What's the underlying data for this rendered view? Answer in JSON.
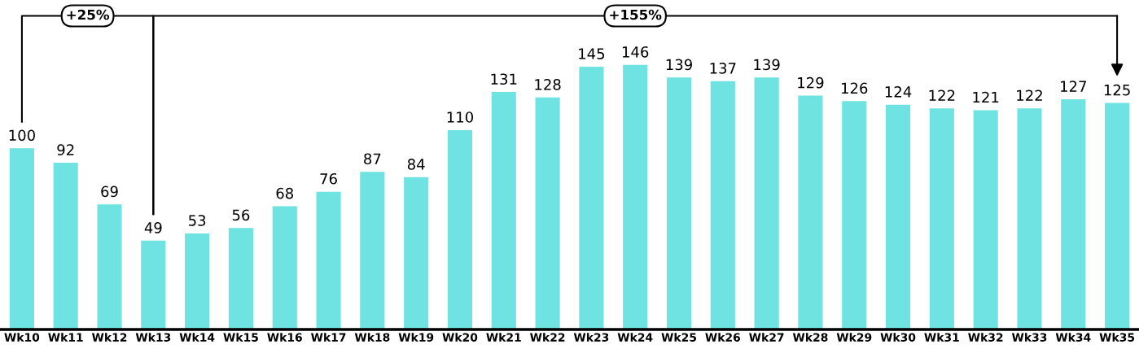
{
  "chart_data": {
    "type": "bar",
    "categories": [
      "Wk10",
      "Wk11",
      "Wk12",
      "Wk13",
      "Wk14",
      "Wk15",
      "Wk16",
      "Wk17",
      "Wk18",
      "Wk19",
      "Wk20",
      "Wk21",
      "Wk22",
      "Wk23",
      "Wk24",
      "Wk25",
      "Wk26",
      "Wk27",
      "Wk28",
      "Wk29",
      "Wk30",
      "Wk31",
      "Wk32",
      "Wk33",
      "Wk34",
      "Wk35"
    ],
    "values": [
      100,
      92,
      69,
      49,
      53,
      56,
      68,
      76,
      87,
      84,
      110,
      131,
      128,
      145,
      146,
      139,
      137,
      139,
      129,
      126,
      124,
      122,
      121,
      122,
      127,
      125
    ],
    "color": "#6ee3e1",
    "data_labels": true,
    "annotations": [
      "+25%",
      "+155%"
    ]
  }
}
